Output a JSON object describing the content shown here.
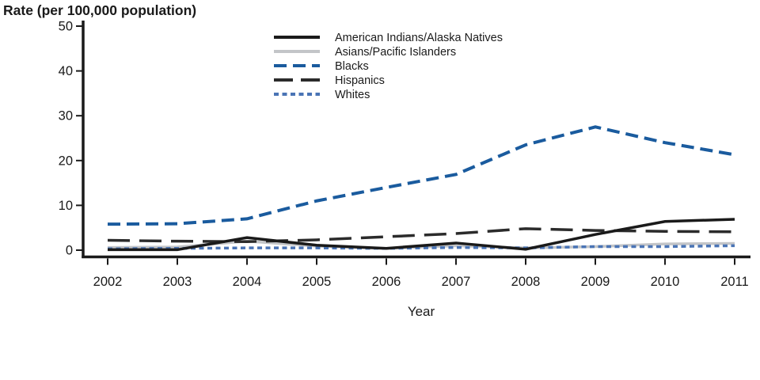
{
  "chart_data": {
    "type": "line",
    "title": "Rate (per 100,000 population)",
    "xlabel": "Year",
    "ylabel": "Rate (per 100,000 population)",
    "x": [
      2002,
      2003,
      2004,
      2005,
      2006,
      2007,
      2008,
      2009,
      2010,
      2011
    ],
    "ylim": [
      0,
      50
    ],
    "yticks": [
      0,
      10,
      20,
      30,
      40,
      50
    ],
    "grid": false,
    "legend_position": "top-center-inside",
    "series": [
      {
        "name": "American Indians/Alaska Natives",
        "color": "#1a1a1a",
        "style": "solid",
        "values": [
          0.1,
          0.1,
          2.8,
          1.1,
          0.4,
          1.6,
          0.2,
          3.5,
          6.4,
          6.9
        ]
      },
      {
        "name": "Asians/Pacific Islanders",
        "color": "#c3c5c8",
        "style": "solid",
        "values": [
          0.6,
          0.7,
          2.0,
          0.9,
          0.4,
          1.0,
          0.5,
          0.8,
          1.4,
          1.5
        ]
      },
      {
        "name": "Blacks",
        "color": "#1a5b9e",
        "style": "dashed",
        "values": [
          5.8,
          5.9,
          7.0,
          11.0,
          14.0,
          16.9,
          23.5,
          27.5,
          24.0,
          21.3
        ]
      },
      {
        "name": "Hispanics",
        "color": "#2b2b2b",
        "style": "long-dash",
        "values": [
          2.2,
          2.0,
          1.9,
          2.3,
          3.0,
          3.7,
          4.8,
          4.4,
          4.2,
          4.1
        ]
      },
      {
        "name": "Whites",
        "color": "#4a74b5",
        "style": "short-dash",
        "values": [
          0.3,
          0.4,
          0.5,
          0.5,
          0.4,
          0.6,
          0.5,
          0.8,
          0.8,
          1.0
        ]
      }
    ]
  },
  "axis": {
    "color": "#1a1a1a"
  }
}
